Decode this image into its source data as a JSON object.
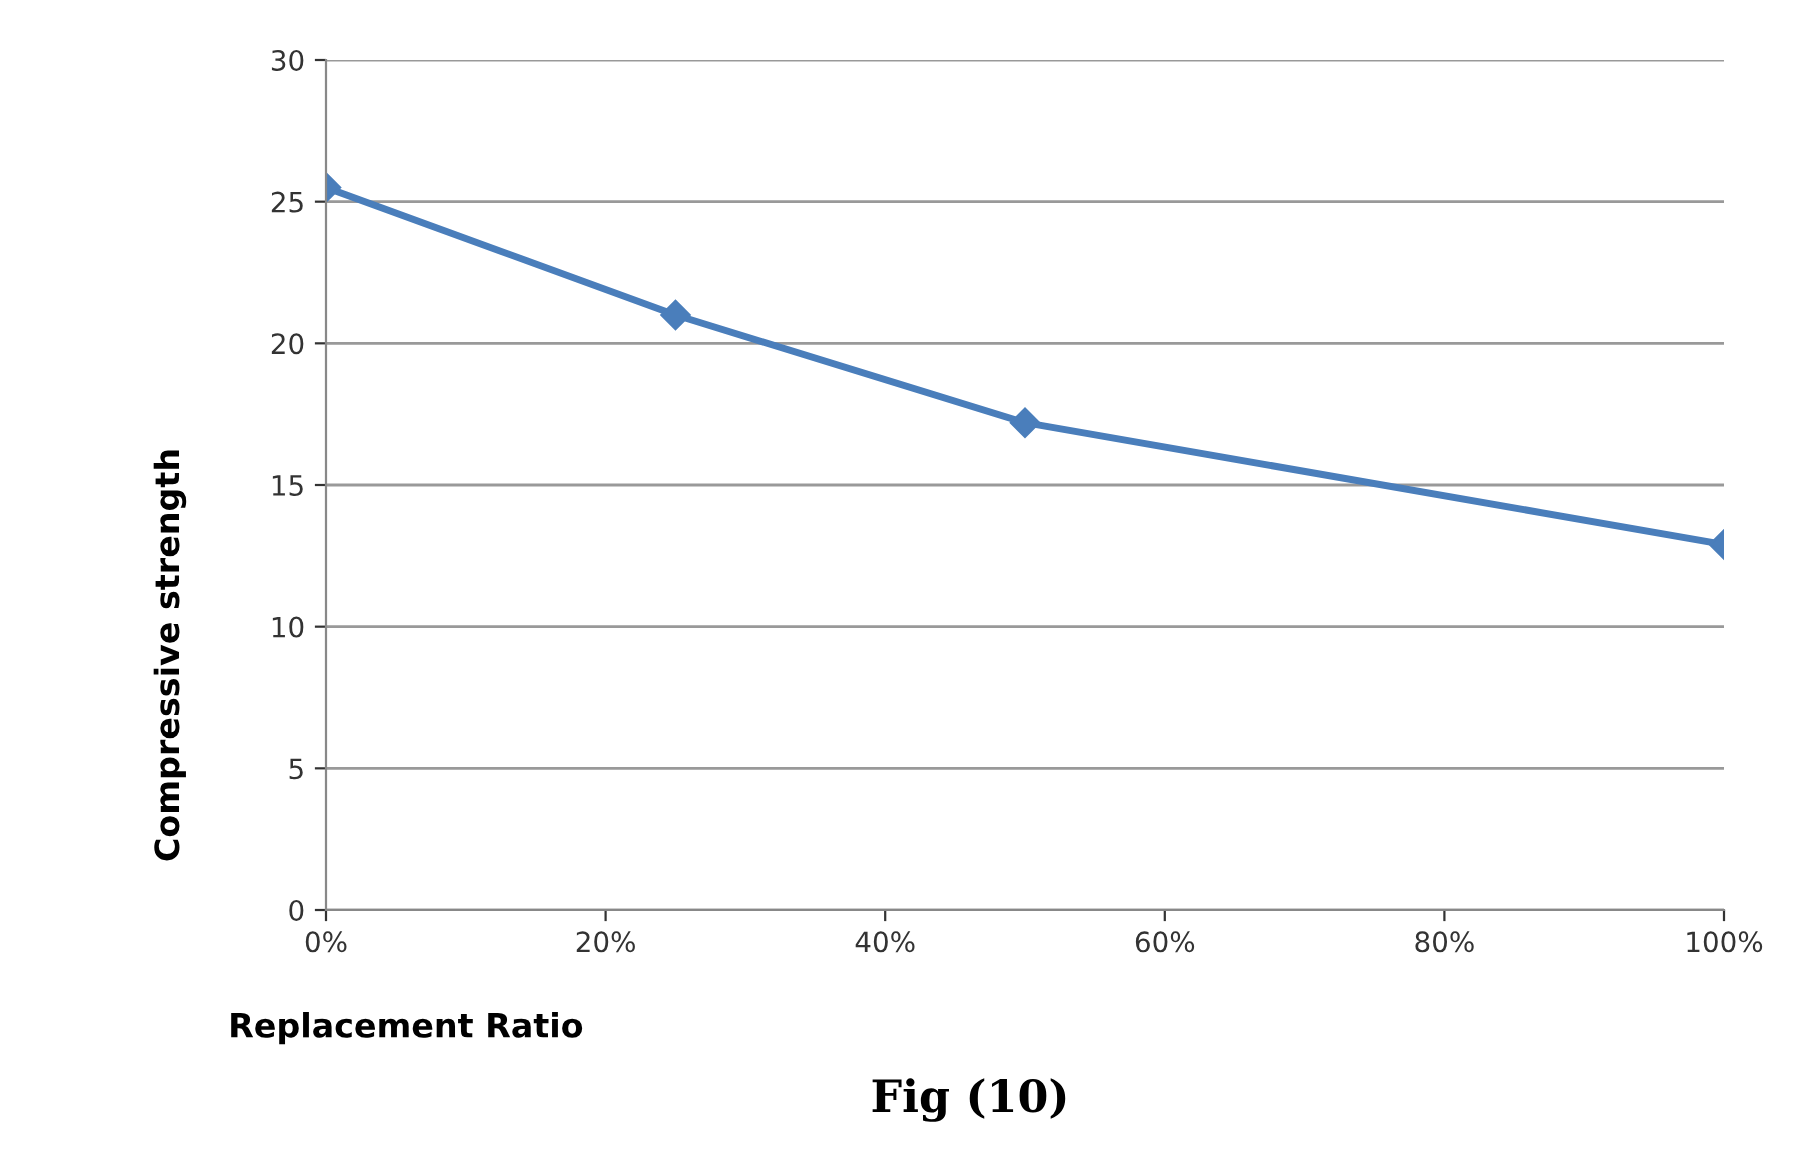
{
  "chart_data": {
    "type": "line",
    "xlabel": "Replacement Ratio",
    "ylabel": "Compressive strength",
    "annotations": [
      "Fig (10)"
    ],
    "x": [
      0,
      25,
      50,
      100
    ],
    "series": [
      {
        "color": "#4a7ebb",
        "values": [
          25.5,
          21,
          17.2,
          12.9
        ]
      }
    ],
    "xlim": [
      0,
      100
    ],
    "xticks": [
      {
        "value": 0,
        "label": "0%"
      },
      {
        "value": 20,
        "label": "20%"
      },
      {
        "value": 40,
        "label": "40%"
      },
      {
        "value": 60,
        "label": "60%"
      },
      {
        "value": 80,
        "label": "80%"
      },
      {
        "value": 100,
        "label": "100%"
      }
    ],
    "ylim": [
      0,
      30
    ],
    "yticks": [
      0,
      5,
      10,
      15,
      20,
      25,
      30
    ],
    "grid": "y",
    "marker": "diamond",
    "line_style": "solid",
    "legend": false
  }
}
